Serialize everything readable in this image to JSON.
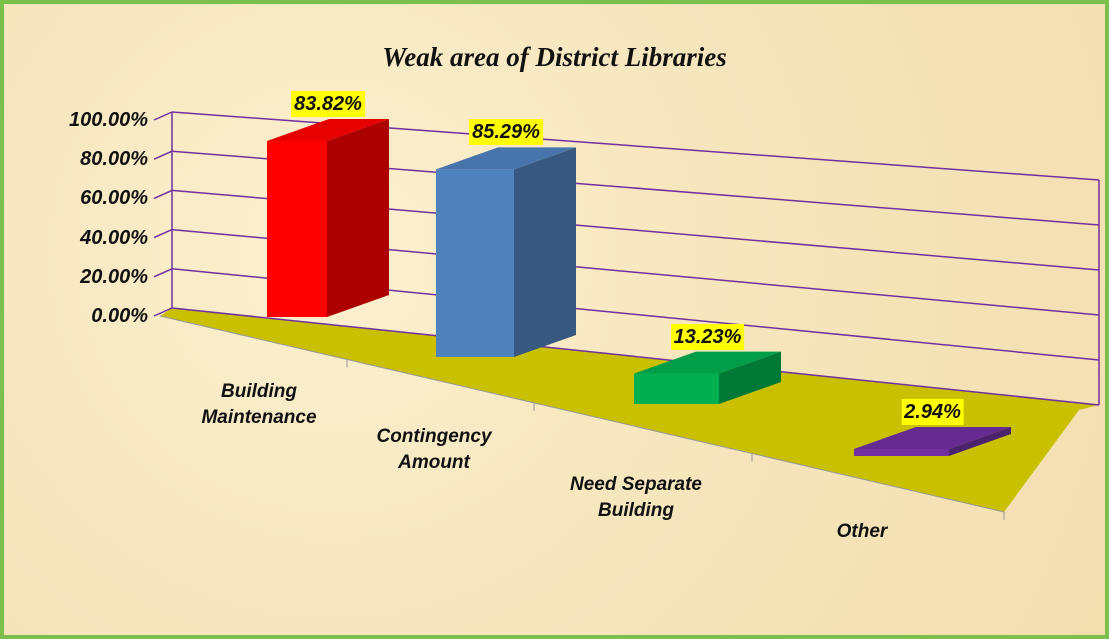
{
  "chart_data": {
    "type": "bar3d",
    "title": "Weak area of District Libraries",
    "categories": [
      "Building Maintenance",
      "Contingency Amount",
      "Need Separate Building",
      "Other"
    ],
    "values": [
      83.82,
      85.29,
      13.23,
      2.94
    ],
    "value_labels": [
      "83.82%",
      "85.29%",
      "13.23%",
      "2.94%"
    ],
    "colors": [
      "#ff0000",
      "#4f81bd",
      "#00b050",
      "#7030a0"
    ],
    "ylim": [
      0,
      100
    ],
    "yticks": [
      {
        "value": 0,
        "label": "0.00%"
      },
      {
        "value": 20,
        "label": "20.00%"
      },
      {
        "value": 40,
        "label": "40.00%"
      },
      {
        "value": 60,
        "label": "60.00%"
      },
      {
        "value": 80,
        "label": "80.00%"
      },
      {
        "value": 100,
        "label": "100.00%"
      }
    ],
    "grid": true
  }
}
